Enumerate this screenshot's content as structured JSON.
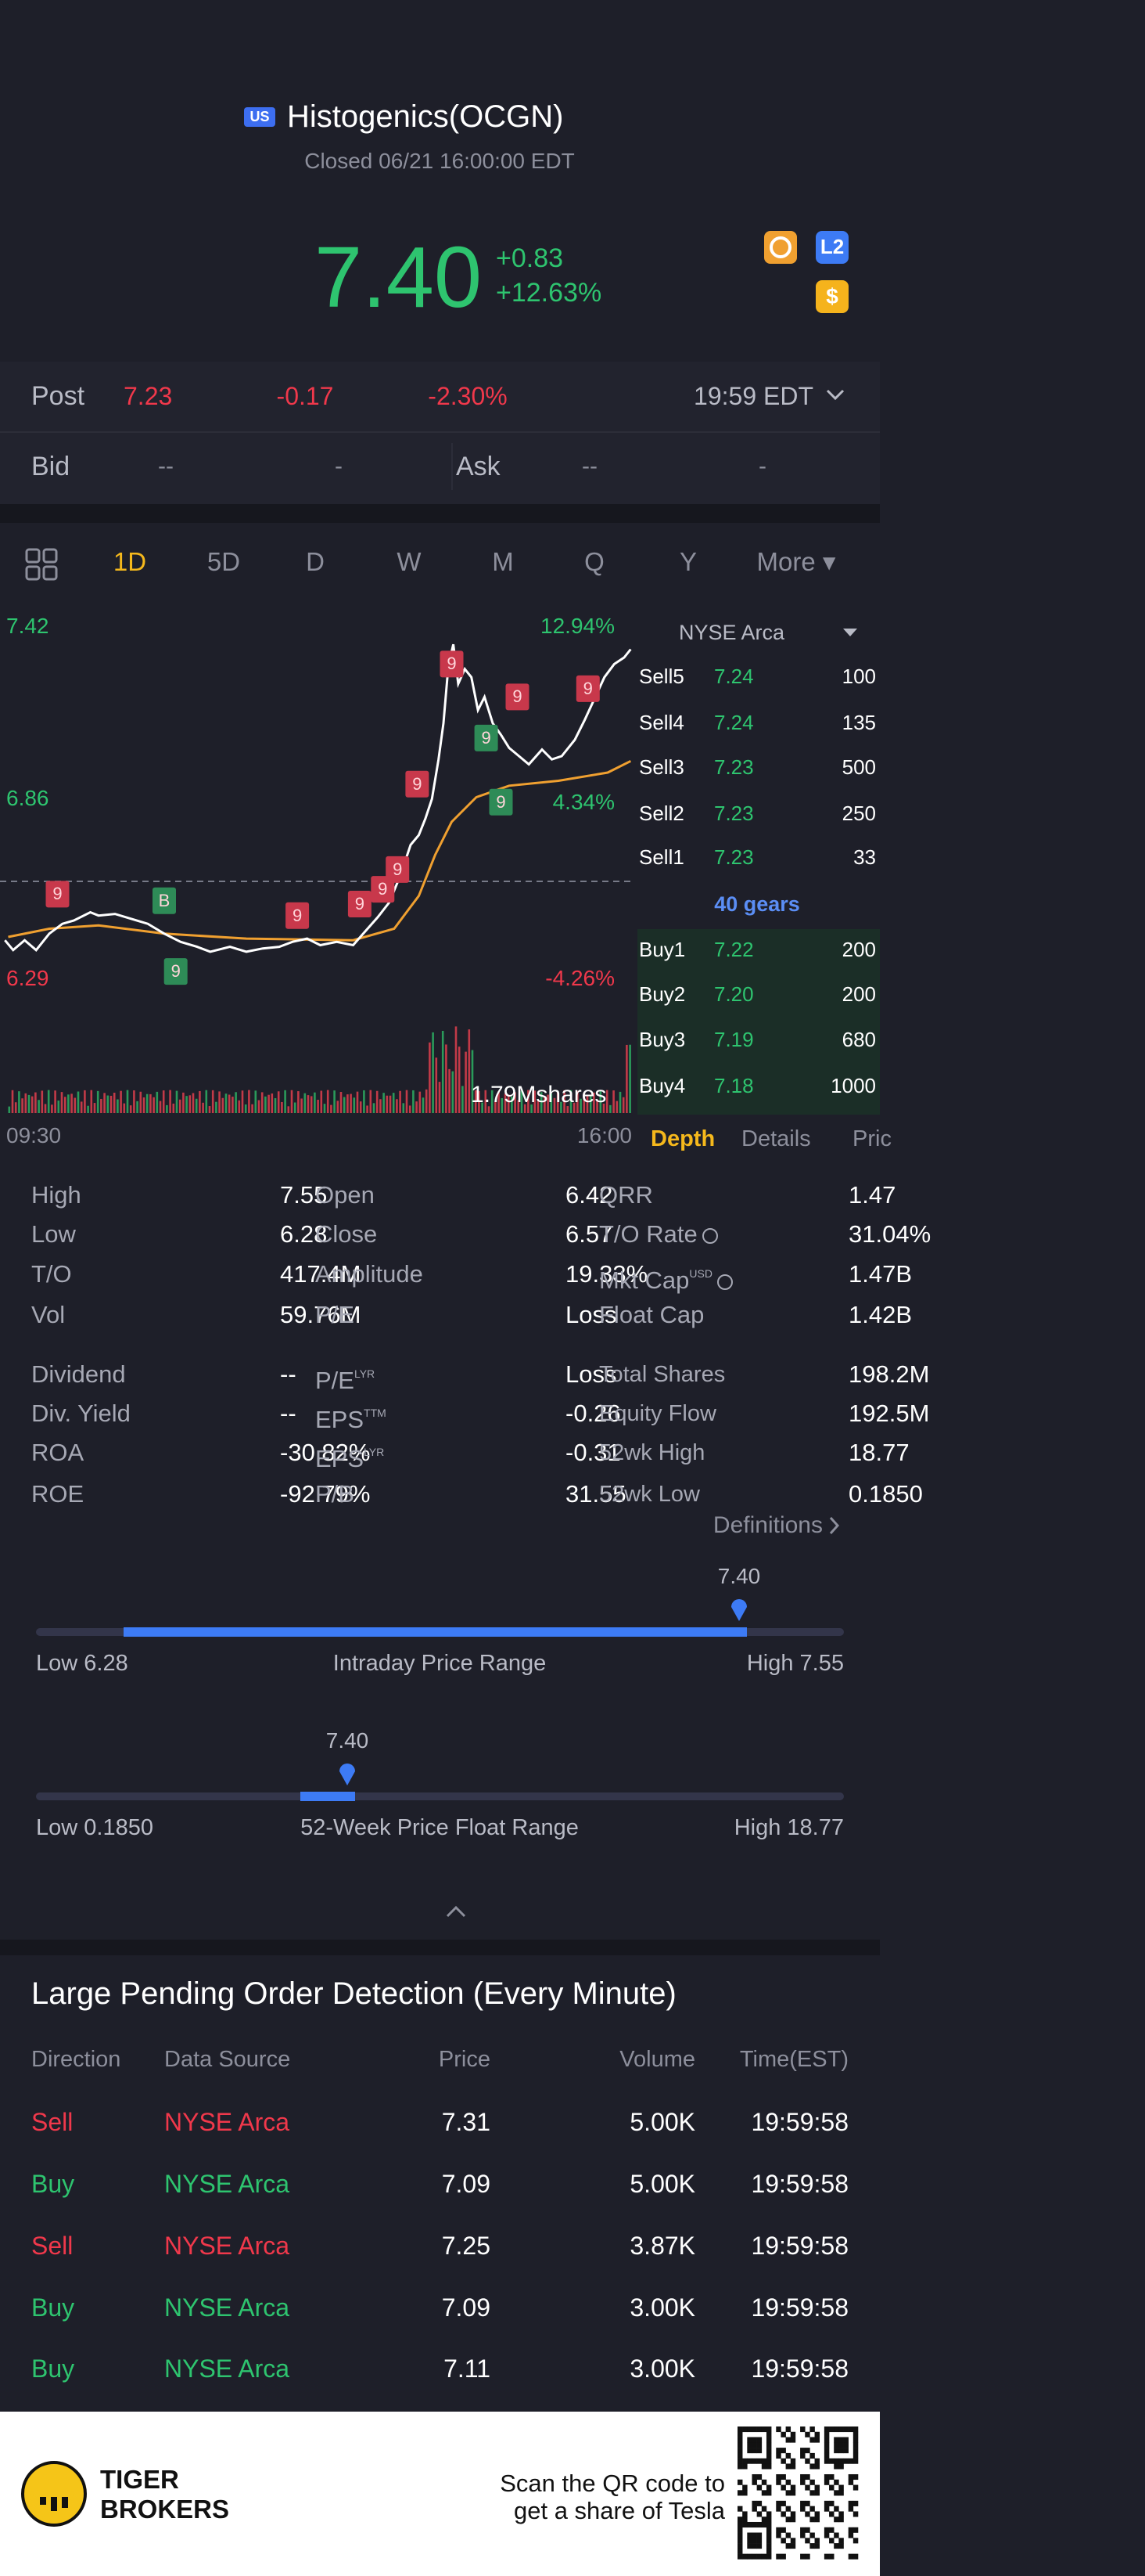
{
  "header": {
    "badge": "US",
    "title": "Histogenics(OCGN)",
    "status": "Closed 06/21 16:00:00 EDT"
  },
  "quote": {
    "price": "7.40",
    "change": "+0.83",
    "change_pct": "+12.63%",
    "icons": [
      "L2",
      "$"
    ]
  },
  "post": {
    "label": "Post",
    "price": "7.23",
    "change": "-0.17",
    "change_pct": "-2.30%",
    "time": "19:59 EDT"
  },
  "bid_ask": {
    "bid_label": "Bid",
    "bid": "--",
    "bid_size": "-",
    "ask_label": "Ask",
    "ask": "--",
    "ask_size": "-"
  },
  "tabs": [
    "1D",
    "5D",
    "D",
    "W",
    "M",
    "Q",
    "Y",
    "More ▾"
  ],
  "chart": {
    "price_high": "7.42",
    "price_mid": "6.86",
    "price_low": "6.29",
    "pct_high": "12.94%",
    "pct_mid": "4.34%",
    "pct_low": "-4.26%",
    "volume": "1.79Mshares",
    "time_start": "09:30",
    "time_end": "16:00",
    "markers": [
      {
        "label": "9",
        "color": "#c8384b"
      },
      {
        "label": "9",
        "color": "#c8384b"
      },
      {
        "label": "9",
        "color": "#c8384b"
      },
      {
        "label": "9",
        "color": "#c8384b"
      },
      {
        "label": "9",
        "color": "#c8384b"
      },
      {
        "label": "9",
        "color": "#c8384b"
      },
      {
        "label": "9",
        "color": "#c8384b"
      },
      {
        "label": "9",
        "color": "#c8384b"
      },
      {
        "label": "9",
        "color": "#c8384b"
      },
      {
        "label": "9",
        "color": "#2e8b57"
      },
      {
        "label": "9",
        "color": "#2e8b57"
      },
      {
        "label": "9",
        "color": "#2e8b57"
      },
      {
        "label": "B",
        "color": "#2e8b57"
      }
    ]
  },
  "order_book": {
    "exchange": "NYSE Arca",
    "sell": [
      [
        "Sell5",
        "7.24",
        "100"
      ],
      [
        "Sell4",
        "7.24",
        "135"
      ],
      [
        "Sell3",
        "7.23",
        "500"
      ],
      [
        "Sell2",
        "7.23",
        "250"
      ],
      [
        "Sell1",
        "7.23",
        "33"
      ]
    ],
    "gears": "40 gears",
    "buy": [
      [
        "Buy1",
        "7.22",
        "200"
      ],
      [
        "Buy2",
        "7.20",
        "200"
      ],
      [
        "Buy3",
        "7.19",
        "680"
      ],
      [
        "Buy4",
        "7.18",
        "1000"
      ]
    ],
    "tabs": [
      "Depth",
      "Details",
      "Pric"
    ]
  },
  "stats": {
    "rows": [
      [
        {
          "label": "High",
          "value": "7.55"
        },
        {
          "label": "Open",
          "value": "6.42"
        },
        {
          "label": "QRR",
          "value": "1.47"
        }
      ],
      [
        {
          "label": "Low",
          "value": "6.28"
        },
        {
          "label": "Close",
          "value": "6.57"
        },
        {
          "label": "T/O Rate",
          "value": "31.04%",
          "info": true
        }
      ],
      [
        {
          "label": "T/O",
          "value": "417.4M"
        },
        {
          "label": "Amplitude",
          "value": "19.33%"
        },
        {
          "label": "Mkt Cap",
          "sup": "USD",
          "value": "1.47B",
          "info": true
        }
      ],
      [
        {
          "label": "Vol",
          "value": "59.76M"
        },
        {
          "label": "P/E",
          "value": "Loss"
        },
        {
          "label": "Float Cap",
          "value": "1.42B"
        }
      ],
      [
        {
          "label": "Dividend",
          "value": "--"
        },
        {
          "label": "P/E",
          "sup": "LYR",
          "value": "Loss"
        },
        {
          "label": "Total Shares",
          "value": "198.2M"
        }
      ],
      [
        {
          "label": "Div. Yield",
          "value": "--"
        },
        {
          "label": "EPS",
          "sup": "TTM",
          "value": "-0.26"
        },
        {
          "label": "Equity Flow",
          "value": "192.5M"
        }
      ],
      [
        {
          "label": "ROA",
          "value": "-30.82%"
        },
        {
          "label": "EPS",
          "sup": "LYR",
          "value": "-0.31"
        },
        {
          "label": "52wk High",
          "value": "18.77"
        }
      ],
      [
        {
          "label": "ROE",
          "value": "-92.79%"
        },
        {
          "label": "P/B",
          "value": "31.55"
        },
        {
          "label": "52wk Low",
          "value": "0.1850"
        }
      ]
    ],
    "definitions": "Definitions"
  },
  "ranges": [
    {
      "current": "7.40",
      "low": "Low 6.28",
      "title": "Intraday Price Range",
      "high": "High 7.55"
    },
    {
      "current": "7.40",
      "low": "Low 0.1850",
      "title": "52-Week Price Float Range",
      "high": "High 18.77"
    }
  ],
  "pending": {
    "title": "Large Pending Order Detection (Every Minute)",
    "columns": [
      "Direction",
      "Data Source",
      "Price",
      "Volume",
      "Time(EST)"
    ],
    "rows": [
      {
        "cells": [
          "Sell",
          "NYSE Arca",
          "7.31",
          "5.00K",
          "19:59:58"
        ],
        "color": "#f0384b"
      },
      {
        "cells": [
          "Buy",
          "NYSE Arca",
          "7.09",
          "5.00K",
          "19:59:58"
        ],
        "color": "#2ec46f"
      },
      {
        "cells": [
          "Sell",
          "NYSE Arca",
          "7.25",
          "3.87K",
          "19:59:58"
        ],
        "color": "#f0384b"
      },
      {
        "cells": [
          "Buy",
          "NYSE Arca",
          "7.09",
          "3.00K",
          "19:59:58"
        ],
        "color": "#2ec46f"
      },
      {
        "cells": [
          "Buy",
          "NYSE Arca",
          "7.11",
          "3.00K",
          "19:59:58"
        ],
        "color": "#2ec46f"
      }
    ]
  },
  "footer": {
    "brand": [
      "TIGER",
      "BROKERS"
    ],
    "promo": [
      "Scan the QR code to",
      "get a share of Tesla"
    ]
  }
}
